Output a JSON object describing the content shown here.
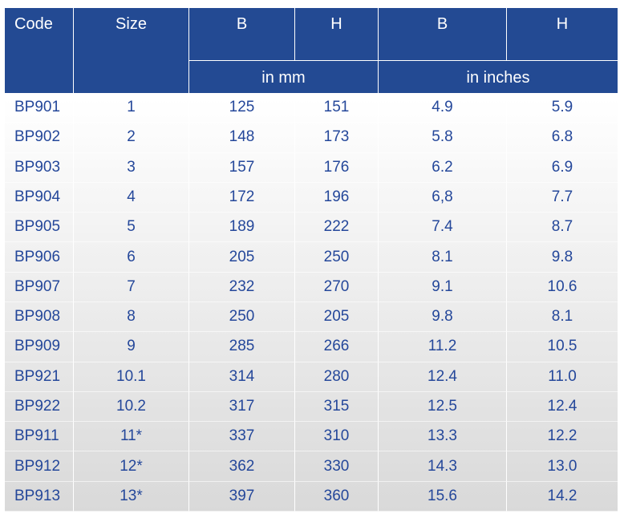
{
  "table": {
    "header": [
      "Code",
      "Size",
      "B",
      "H",
      "B",
      "H"
    ],
    "units": [
      "in mm",
      "in inches"
    ],
    "rows": [
      [
        "BP901",
        "1",
        "125",
        "151",
        "4.9",
        "5.9"
      ],
      [
        "BP902",
        "2",
        "148",
        "173",
        "5.8",
        "6.8"
      ],
      [
        "BP903",
        "3",
        "157",
        "176",
        "6.2",
        "6.9"
      ],
      [
        "BP904",
        "4",
        "172",
        "196",
        "6,8",
        "7.7"
      ],
      [
        "BP905",
        "5",
        "189",
        "222",
        "7.4",
        "8.7"
      ],
      [
        "BP906",
        "6",
        "205",
        "250",
        "8.1",
        "9.8"
      ],
      [
        "BP907",
        "7",
        "232",
        "270",
        "9.1",
        "10.6"
      ],
      [
        "BP908",
        "8",
        "250",
        "205",
        "9.8",
        "8.1"
      ],
      [
        "BP909",
        "9",
        "285",
        "266",
        "11.2",
        "10.5"
      ],
      [
        "BP921",
        "10.1",
        "314",
        "280",
        "12.4",
        "11.0"
      ],
      [
        "BP922",
        "10.2",
        "317",
        "315",
        "12.5",
        "12.4"
      ],
      [
        "BP911",
        "11*",
        "337",
        "310",
        "13.3",
        "12.2"
      ],
      [
        "BP912",
        "12*",
        "362",
        "330",
        "14.3",
        "13.0"
      ],
      [
        "BP913",
        "13*",
        "397",
        "360",
        "15.6",
        "14.2"
      ]
    ]
  }
}
